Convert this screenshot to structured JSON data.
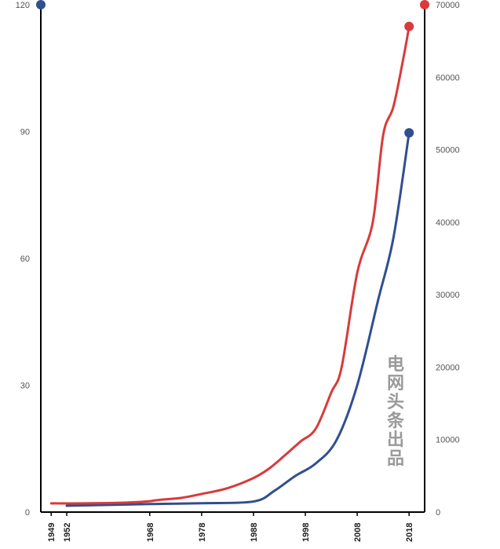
{
  "chart_data": {
    "type": "line",
    "title": "",
    "xlabel": "",
    "ylabel_left": "",
    "ylabel_right": "",
    "x_ticks": [
      1949,
      1952,
      1968,
      1978,
      1988,
      1998,
      2008,
      2018
    ],
    "xlim": [
      1947,
      2021
    ],
    "left_axis": {
      "ylim": [
        0,
        120
      ],
      "ticks": [
        0,
        30,
        60,
        90,
        120
      ],
      "tick_labels": [
        "0",
        "30",
        "60",
        "90",
        "120"
      ]
    },
    "right_axis": {
      "ylim": [
        0,
        70000
      ],
      "ticks": [
        0,
        10000,
        20000,
        30000,
        40000,
        50000,
        60000,
        70000
      ],
      "tick_labels": [
        "0",
        "10000",
        "20000",
        "30000",
        "40000",
        "50000",
        "60000",
        "70000"
      ]
    },
    "series": [
      {
        "axis": "left",
        "color": "#2f4f8f",
        "x": [
          1952,
          1960,
          1968,
          1978,
          1988,
          1992,
          1996,
          2000,
          2004,
          2008,
          2012,
          2015,
          2018
        ],
        "y": [
          1.5,
          1.7,
          1.9,
          2.1,
          2.5,
          5.0,
          8.5,
          11.5,
          17.0,
          30.0,
          50.0,
          65.0,
          89.7
        ],
        "end_marker": true
      },
      {
        "axis": "right",
        "color": "#d93a3a",
        "x": [
          1949,
          1955,
          1960,
          1963,
          1966,
          1968,
          1970,
          1974,
          1978,
          1983,
          1988,
          1991,
          1994,
          1997,
          2000,
          2003,
          2005,
          2008,
          2011,
          2013,
          2015,
          2017,
          2018
        ],
        "y": [
          1200,
          1200,
          1250,
          1300,
          1400,
          1500,
          1700,
          1950,
          2500,
          3300,
          4700,
          6000,
          7800,
          9700,
          11500,
          16500,
          20000,
          33000,
          40000,
          52000,
          56000,
          63000,
          67000
        ],
        "end_marker": true
      }
    ],
    "left_axis_top_marker": {
      "y": 120,
      "color": "#2f4f8f"
    },
    "right_axis_top_marker": {
      "y": 70000,
      "color": "#d93a3a"
    },
    "grid": false
  },
  "watermark": "电网头条出品"
}
